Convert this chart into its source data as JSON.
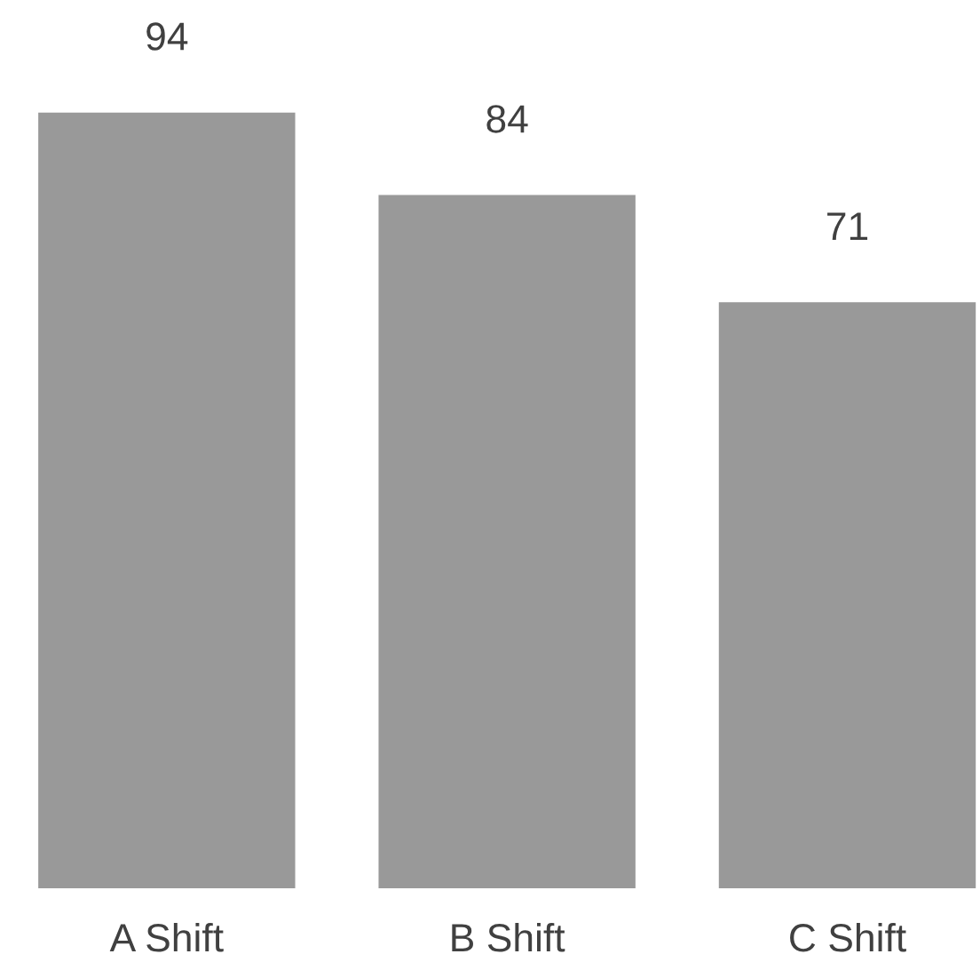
{
  "chart_data": {
    "type": "bar",
    "categories": [
      "A Shift",
      "B Shift",
      "C Shift"
    ],
    "values": [
      94,
      84,
      71
    ],
    "color": "#999999",
    "data_labels": true
  }
}
